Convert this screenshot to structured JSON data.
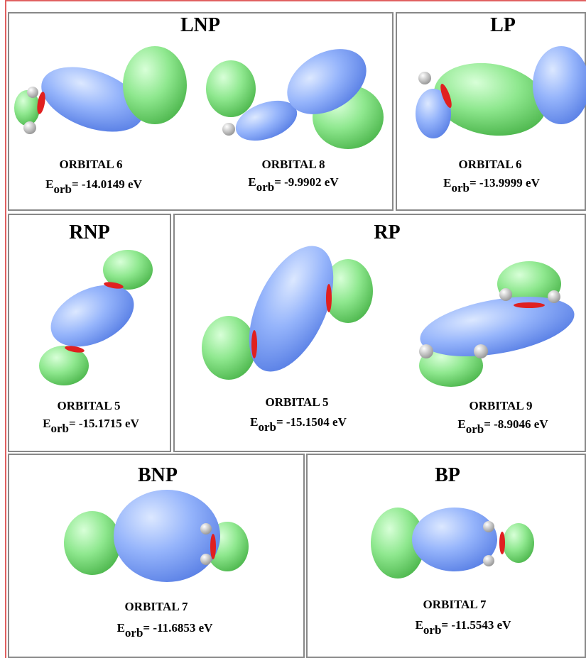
{
  "energy_symbol": "E",
  "energy_subscript": "orb",
  "panels": [
    {
      "title": "LNP",
      "orbitals": [
        {
          "label": "ORBITAL 6",
          "energy": "= -14.0149 eV"
        },
        {
          "label": "ORBITAL 8",
          "energy": "= -9.9902 eV"
        }
      ]
    },
    {
      "title": "LP",
      "orbitals": [
        {
          "label": "ORBITAL 6",
          "energy": "= -13.9999 eV"
        }
      ]
    },
    {
      "title": "RNP",
      "orbitals": [
        {
          "label": "ORBITAL 5",
          "energy": "= -15.1715 eV"
        }
      ]
    },
    {
      "title": "RP",
      "orbitals": [
        {
          "label": "ORBITAL 5",
          "energy": "= -15.1504 eV"
        },
        {
          "label": "ORBITAL 9",
          "energy": "= -8.9046 eV"
        }
      ]
    },
    {
      "title": "BNP",
      "orbitals": [
        {
          "label": "ORBITAL 7",
          "energy": "= -11.6853 eV"
        }
      ]
    },
    {
      "title": "BP",
      "orbitals": [
        {
          "label": "ORBITAL 7",
          "energy": "= -11.5543 eV"
        }
      ]
    }
  ]
}
